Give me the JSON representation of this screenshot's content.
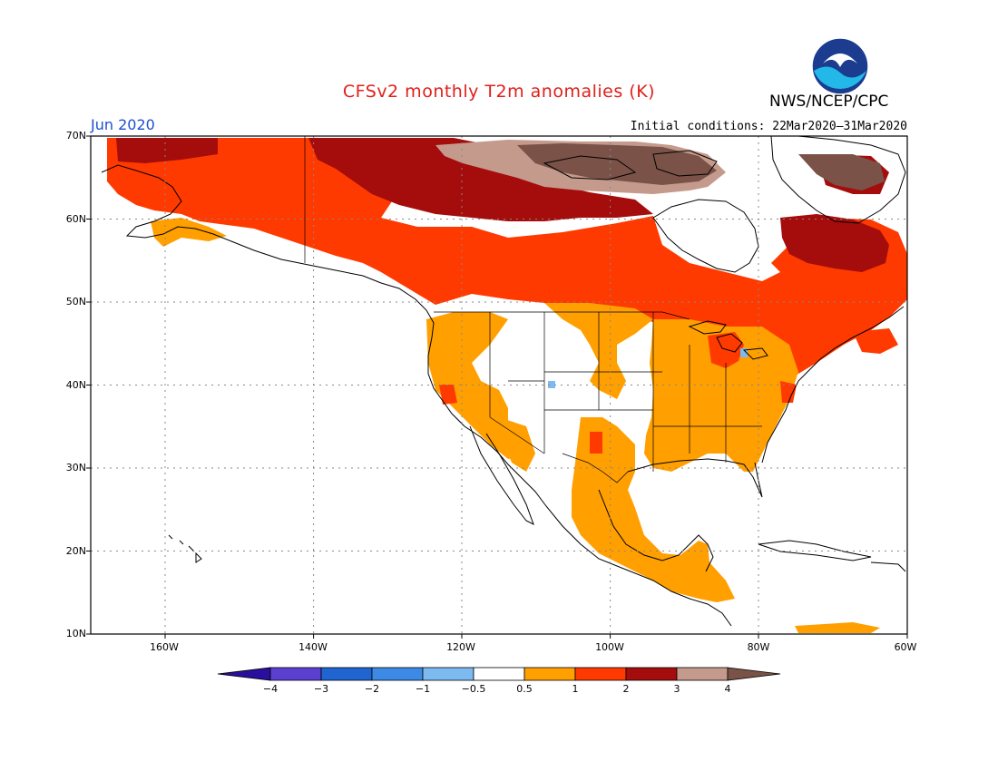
{
  "header": {
    "title": "CFSv2 monthly T2m anomalies (K)",
    "title_color": "#e0201b",
    "agency": "NWS/NCEP/CPC",
    "month": "Jun 2020",
    "month_color": "#1f4fd0",
    "initial_conditions": "Initial conditions: 22Mar2020–31Mar2020"
  },
  "map": {
    "region": "North America",
    "lat_labels": [
      "70N",
      "60N",
      "50N",
      "40N",
      "30N",
      "20N",
      "10N"
    ],
    "lon_labels": [
      "160W",
      "140W",
      "120W",
      "100W",
      "80W",
      "60W"
    ],
    "grid_lines": "dotted"
  },
  "legend": {
    "labels": [
      "−4",
      "−3",
      "−2",
      "−1",
      "−0.5",
      "0.5",
      "1",
      "2",
      "3",
      "4"
    ],
    "colors": [
      "#2a0f9e",
      "#5a3fd0",
      "#1f64d0",
      "#3d8ae6",
      "#7dbaf0",
      "#ffffff",
      "#ff9f00",
      "#ff3a00",
      "#a50c0c",
      "#c49a8c",
      "#7a5248"
    ]
  },
  "chart_data": {
    "type": "heatmap",
    "title": "CFSv2 monthly T2m anomalies (K)",
    "valid_month": "Jun 2020",
    "lat_range": [
      10,
      70
    ],
    "lon_range": [
      -170,
      -60
    ],
    "color_bins": [
      {
        "range": "< -4",
        "color": "#2a0f9e"
      },
      {
        "range": "-4 to -3",
        "color": "#5a3fd0"
      },
      {
        "range": "-3 to -2",
        "color": "#1f64d0"
      },
      {
        "range": "-2 to -1",
        "color": "#3d8ae6"
      },
      {
        "range": "-1 to -0.5",
        "color": "#7dbaf0"
      },
      {
        "range": "-0.5 to 0.5",
        "color": "#ffffff"
      },
      {
        "range": "0.5 to 1",
        "color": "#ff9f00"
      },
      {
        "range": "1 to 2",
        "color": "#ff3a00"
      },
      {
        "range": "2 to 3",
        "color": "#a50c0c"
      },
      {
        "range": "3 to 4",
        "color": "#c49a8c"
      },
      {
        "range": "> 4",
        "color": "#7a5248"
      }
    ]
  }
}
